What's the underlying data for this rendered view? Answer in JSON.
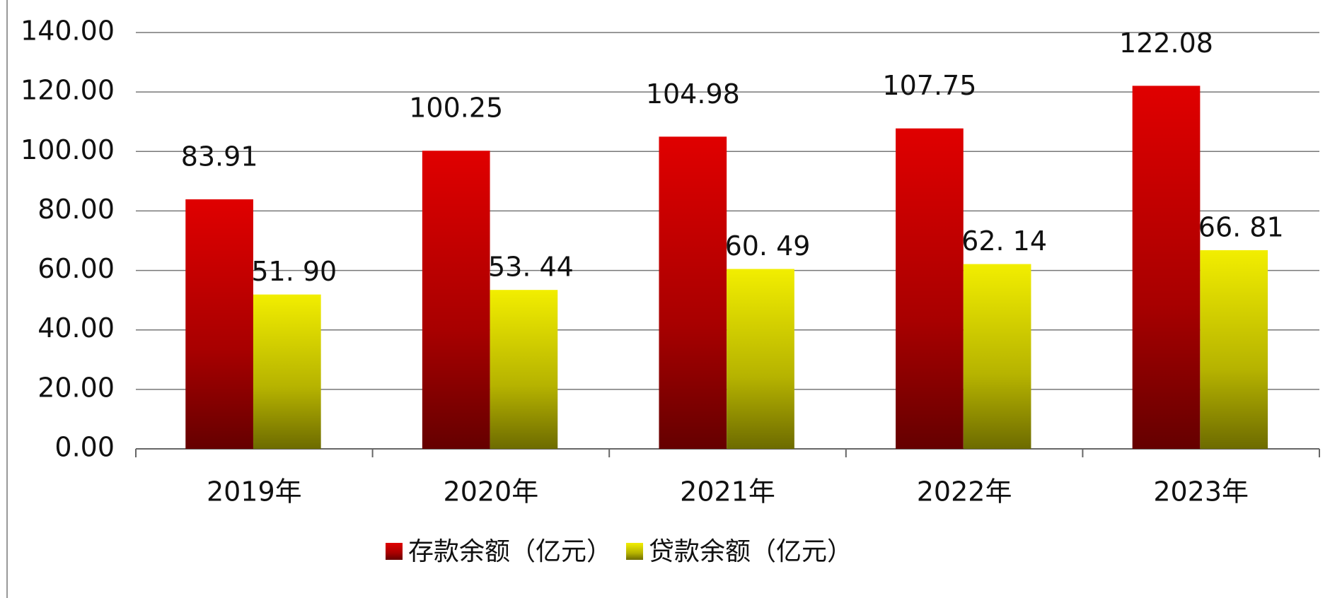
{
  "chart_data": {
    "type": "bar",
    "categories": [
      "2019年",
      "2020年",
      "2021年",
      "2022年",
      "2023年"
    ],
    "series": [
      {
        "name": "存款余额（亿元）",
        "color": "#e00000",
        "values": [
          83.91,
          100.25,
          104.98,
          107.75,
          122.08
        ]
      },
      {
        "name": "贷款余额（亿元）",
        "color": "#f2ee00",
        "values": [
          51.9,
          53.44,
          60.49,
          62.14,
          66.81
        ],
        "value_labels": [
          "51. 90",
          "53. 44",
          "60. 49",
          "62. 14",
          "66. 81"
        ]
      }
    ],
    "ylim": [
      0,
      140
    ],
    "yticks": [
      {
        "value": 0,
        "label": "0.00"
      },
      {
        "value": 20,
        "label": "20.00"
      },
      {
        "value": 40,
        "label": "40.00"
      },
      {
        "value": 60,
        "label": "60.00"
      },
      {
        "value": 80,
        "label": "80.00"
      },
      {
        "value": 100,
        "label": "100.00"
      },
      {
        "value": 120,
        "label": "120.00"
      },
      {
        "value": 140,
        "label": "140.00"
      }
    ],
    "grid": true,
    "legend": "bottom"
  }
}
